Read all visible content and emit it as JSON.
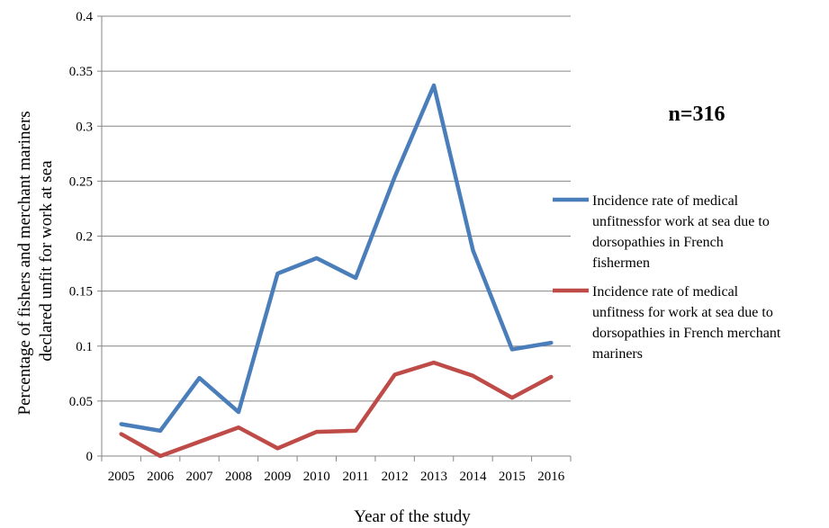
{
  "chart_data": {
    "type": "line",
    "title": "",
    "xlabel": "Year of the study",
    "ylabel": [
      "Percentage of fishers and merchant mariners",
      "declared unfit for work at sea"
    ],
    "annotation": "n=316",
    "ylim": [
      0,
      0.4
    ],
    "yticks": [
      "0",
      "0.05",
      "0.1",
      "0.15",
      "0.2",
      "0.25",
      "0.3",
      "0.35",
      "0.4"
    ],
    "grid": true,
    "legend_position": "right",
    "categories": [
      "2005",
      "2006",
      "2007",
      "2008",
      "2009",
      "2010",
      "2011",
      "2012",
      "2013",
      "2014",
      "2015",
      "2016"
    ],
    "series": [
      {
        "name": "Incidence rate of medical unfitnessfor work at sea due to dorsopathies in French fishermen",
        "legend_lines": [
          "Incidence rate of medical",
          "unfitnessfor work at sea due to",
          "dorsopathies in French",
          "fishermen"
        ],
        "color": "#4a7ebb",
        "values": [
          0.029,
          0.023,
          0.071,
          0.04,
          0.166,
          0.18,
          0.162,
          0.254,
          0.337,
          0.187,
          0.097,
          0.103
        ]
      },
      {
        "name": "Incidence rate of medical unfitness for work at sea due to dorsopathies in French merchant mariners",
        "legend_lines": [
          "Incidence rate of medical",
          "unfitness for work at sea due to",
          "dorsopathies in French merchant",
          "mariners"
        ],
        "color": "#be4b48",
        "values": [
          0.02,
          0.0,
          0.013,
          0.026,
          0.007,
          0.022,
          0.023,
          0.074,
          0.085,
          0.073,
          0.053,
          0.072
        ]
      }
    ]
  }
}
